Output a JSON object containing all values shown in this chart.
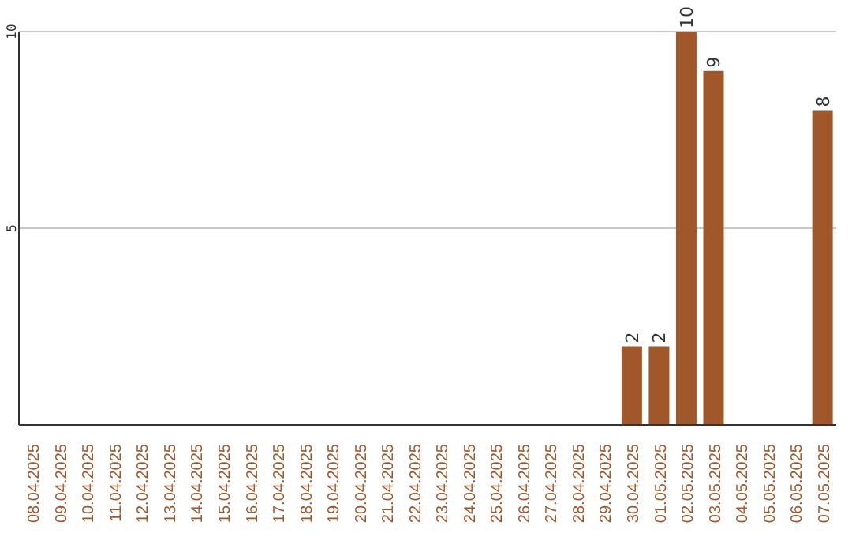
{
  "chart_data": {
    "type": "bar",
    "categories": [
      "08.04.2025",
      "09.04.2025",
      "10.04.2025",
      "11.04.2025",
      "12.04.2025",
      "13.04.2025",
      "14.04.2025",
      "15.04.2025",
      "16.04.2025",
      "17.04.2025",
      "18.04.2025",
      "19.04.2025",
      "20.04.2025",
      "21.04.2025",
      "22.04.2025",
      "23.04.2025",
      "24.04.2025",
      "25.04.2025",
      "26.04.2025",
      "27.04.2025",
      "28.04.2025",
      "29.04.2025",
      "30.04.2025",
      "01.05.2025",
      "02.05.2025",
      "03.05.2025",
      "04.05.2025",
      "05.05.2025",
      "06.05.2025",
      "07.05.2025"
    ],
    "values": [
      0,
      0,
      0,
      0,
      0,
      0,
      0,
      0,
      0,
      0,
      0,
      0,
      0,
      0,
      0,
      0,
      0,
      0,
      0,
      0,
      0,
      0,
      2,
      2,
      10,
      9,
      0,
      0,
      0,
      8
    ],
    "value_labels": [
      null,
      null,
      null,
      null,
      null,
      null,
      null,
      null,
      null,
      null,
      null,
      null,
      null,
      null,
      null,
      null,
      null,
      null,
      null,
      null,
      null,
      null,
      "2",
      "2",
      "10",
      "9",
      null,
      null,
      null,
      "8"
    ],
    "color": "#a0582a",
    "ylim": [
      0,
      10
    ],
    "yticks": [
      {
        "value": 0,
        "label": null
      },
      5,
      10
    ],
    "grid": "y"
  }
}
